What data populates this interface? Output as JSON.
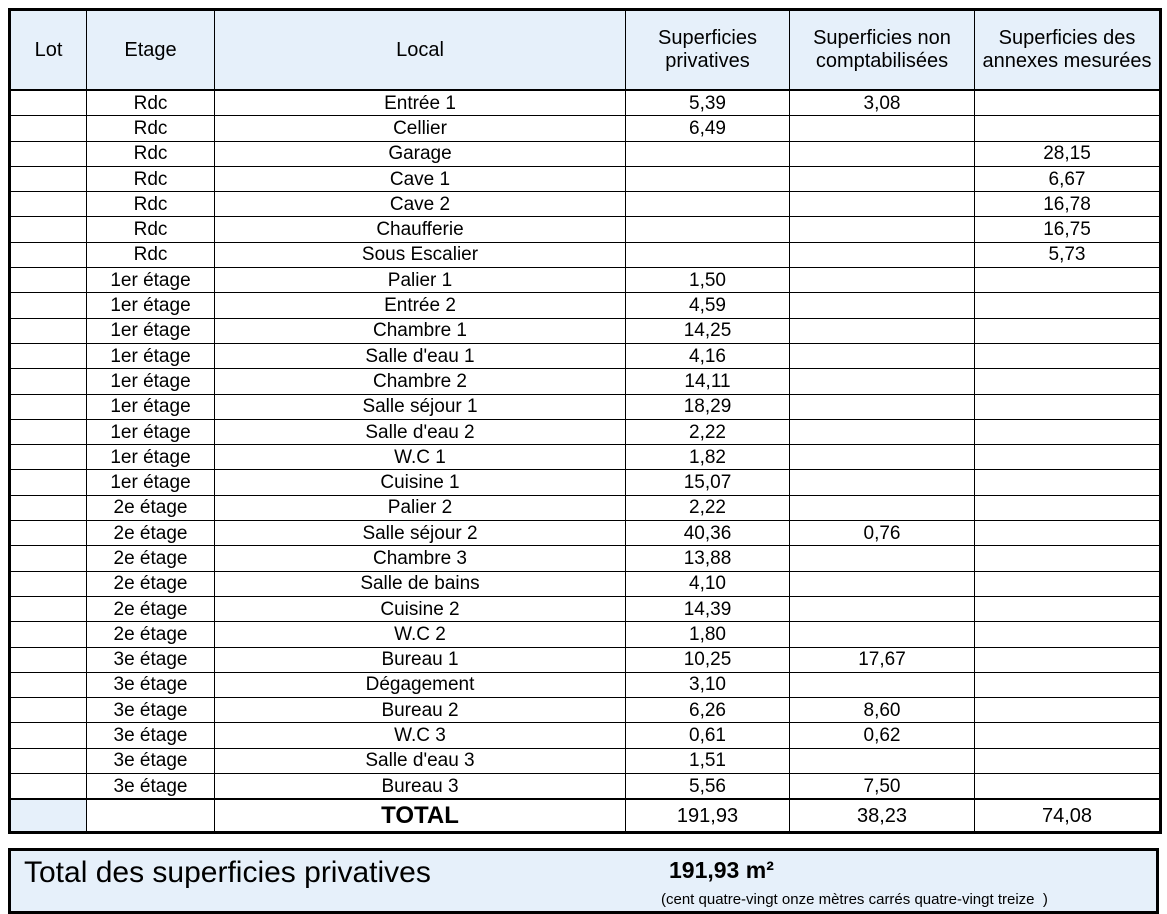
{
  "headers": {
    "lot": "Lot",
    "etage": "Etage",
    "local": "Local",
    "privatives": "Superficies privatives",
    "non_comptabilisees": "Superficies non comptabilisées",
    "annexes": "Superficies des annexes mesurées"
  },
  "rows": [
    {
      "lot": "",
      "etage": "Rdc",
      "local": "Entrée 1",
      "privative": "5,39",
      "non_compta": "3,08",
      "annexe": ""
    },
    {
      "lot": "",
      "etage": "Rdc",
      "local": "Cellier",
      "privative": "6,49",
      "non_compta": "",
      "annexe": ""
    },
    {
      "lot": "",
      "etage": "Rdc",
      "local": "Garage",
      "privative": "",
      "non_compta": "",
      "annexe": "28,15"
    },
    {
      "lot": "",
      "etage": "Rdc",
      "local": "Cave 1",
      "privative": "",
      "non_compta": "",
      "annexe": "6,67"
    },
    {
      "lot": "",
      "etage": "Rdc",
      "local": "Cave 2",
      "privative": "",
      "non_compta": "",
      "annexe": "16,78"
    },
    {
      "lot": "",
      "etage": "Rdc",
      "local": "Chaufferie",
      "privative": "",
      "non_compta": "",
      "annexe": "16,75"
    },
    {
      "lot": "",
      "etage": "Rdc",
      "local": "Sous Escalier",
      "privative": "",
      "non_compta": "",
      "annexe": "5,73"
    },
    {
      "lot": "",
      "etage": "1er étage",
      "local": "Palier 1",
      "privative": "1,50",
      "non_compta": "",
      "annexe": ""
    },
    {
      "lot": "",
      "etage": "1er étage",
      "local": "Entrée 2",
      "privative": "4,59",
      "non_compta": "",
      "annexe": ""
    },
    {
      "lot": "",
      "etage": "1er étage",
      "local": "Chambre 1",
      "privative": "14,25",
      "non_compta": "",
      "annexe": ""
    },
    {
      "lot": "",
      "etage": "1er étage",
      "local": "Salle d'eau 1",
      "privative": "4,16",
      "non_compta": "",
      "annexe": ""
    },
    {
      "lot": "",
      "etage": "1er étage",
      "local": "Chambre 2",
      "privative": "14,11",
      "non_compta": "",
      "annexe": ""
    },
    {
      "lot": "",
      "etage": "1er étage",
      "local": "Salle séjour 1",
      "privative": "18,29",
      "non_compta": "",
      "annexe": ""
    },
    {
      "lot": "",
      "etage": "1er étage",
      "local": "Salle d'eau 2",
      "privative": "2,22",
      "non_compta": "",
      "annexe": ""
    },
    {
      "lot": "",
      "etage": "1er étage",
      "local": "W.C 1",
      "privative": "1,82",
      "non_compta": "",
      "annexe": ""
    },
    {
      "lot": "",
      "etage": "1er étage",
      "local": "Cuisine 1",
      "privative": "15,07",
      "non_compta": "",
      "annexe": ""
    },
    {
      "lot": "",
      "etage": "2e étage",
      "local": "Palier 2",
      "privative": "2,22",
      "non_compta": "",
      "annexe": ""
    },
    {
      "lot": "",
      "etage": "2e étage",
      "local": "Salle séjour 2",
      "privative": "40,36",
      "non_compta": "0,76",
      "annexe": ""
    },
    {
      "lot": "",
      "etage": "2e étage",
      "local": "Chambre 3",
      "privative": "13,88",
      "non_compta": "",
      "annexe": ""
    },
    {
      "lot": "",
      "etage": "2e étage",
      "local": "Salle de bains",
      "privative": "4,10",
      "non_compta": "",
      "annexe": ""
    },
    {
      "lot": "",
      "etage": "2e étage",
      "local": "Cuisine 2",
      "privative": "14,39",
      "non_compta": "",
      "annexe": ""
    },
    {
      "lot": "",
      "etage": "2e étage",
      "local": "W.C 2",
      "privative": "1,80",
      "non_compta": "",
      "annexe": ""
    },
    {
      "lot": "",
      "etage": "3e étage",
      "local": "Bureau 1",
      "privative": "10,25",
      "non_compta": "17,67",
      "annexe": ""
    },
    {
      "lot": "",
      "etage": "3e étage",
      "local": "Dégagement",
      "privative": "3,10",
      "non_compta": "",
      "annexe": ""
    },
    {
      "lot": "",
      "etage": "3e étage",
      "local": "Bureau 2",
      "privative": "6,26",
      "non_compta": "8,60",
      "annexe": ""
    },
    {
      "lot": "",
      "etage": "3e étage",
      "local": "W.C 3",
      "privative": "0,61",
      "non_compta": "0,62",
      "annexe": ""
    },
    {
      "lot": "",
      "etage": "3e étage",
      "local": "Salle d'eau 3",
      "privative": "1,51",
      "non_compta": "",
      "annexe": ""
    },
    {
      "lot": "",
      "etage": "3e étage",
      "local": "Bureau 3",
      "privative": "5,56",
      "non_compta": "7,50",
      "annexe": ""
    }
  ],
  "total": {
    "label": "TOTAL",
    "privative": "191,93",
    "non_compta": "38,23",
    "annexe": "74,08"
  },
  "summary": {
    "label": "Total des superficies privatives",
    "value": "191,93 m²",
    "in_words": "(cent quatre-vingt onze mètres carrés quatre-vingt treize  )"
  },
  "colors": {
    "header_fill": "#e6f0fa",
    "border": "#000000"
  }
}
